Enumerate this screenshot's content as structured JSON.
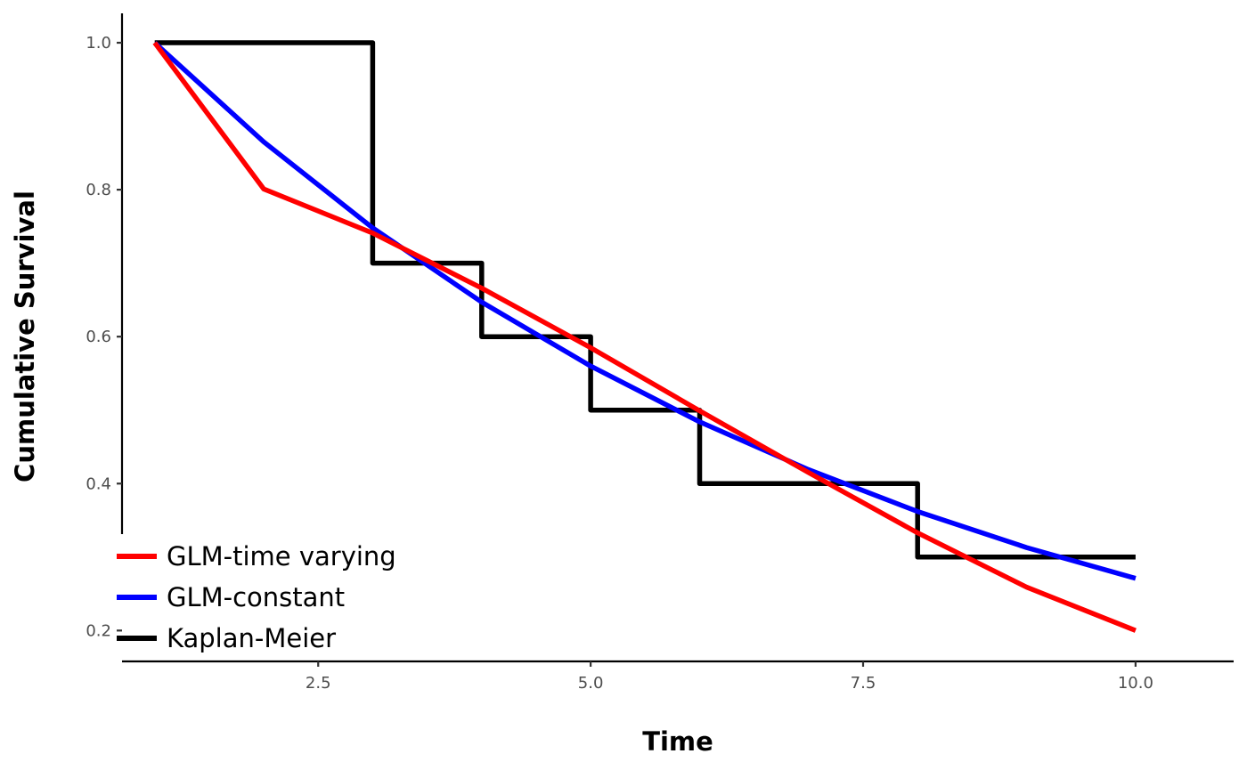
{
  "chart_data": {
    "type": "line",
    "title": "",
    "xlabel": "Time",
    "ylabel": "Cumulative Survival",
    "xlim": [
      0.7,
      10.9
    ],
    "ylim": [
      0.158,
      1.04
    ],
    "xticks": [
      2.5,
      5.0,
      7.5,
      10.0
    ],
    "xtick_labels": [
      "2.5",
      "5.0",
      "7.5",
      "10.0"
    ],
    "yticks": [
      0.2,
      0.4,
      0.6,
      0.8,
      1.0
    ],
    "ytick_labels": [
      "0.2",
      "0.4",
      "0.6",
      "0.8",
      "1.0"
    ],
    "grid": false,
    "legend_position": "bottom-left",
    "series": [
      {
        "name": "GLM-time varying",
        "color": "#ff0000",
        "style": "line",
        "x": [
          1,
          2,
          3,
          4,
          5,
          6,
          7,
          8,
          9,
          10
        ],
        "y": [
          1.0,
          0.801,
          0.741,
          0.666,
          0.585,
          0.499,
          0.415,
          0.333,
          0.259,
          0.2
        ]
      },
      {
        "name": "GLM-constant",
        "color": "#0000ff",
        "style": "line",
        "x": [
          1,
          2,
          3,
          4,
          5,
          6,
          7,
          8,
          9,
          10
        ],
        "y": [
          1.0,
          0.865,
          0.748,
          0.647,
          0.56,
          0.484,
          0.419,
          0.362,
          0.313,
          0.271
        ]
      },
      {
        "name": "Kaplan-Meier",
        "color": "#000000",
        "style": "step",
        "x": [
          1,
          3,
          4,
          5,
          6,
          8,
          10
        ],
        "y": [
          1.0,
          0.7,
          0.6,
          0.5,
          0.4,
          0.3,
          0.3
        ]
      }
    ]
  }
}
